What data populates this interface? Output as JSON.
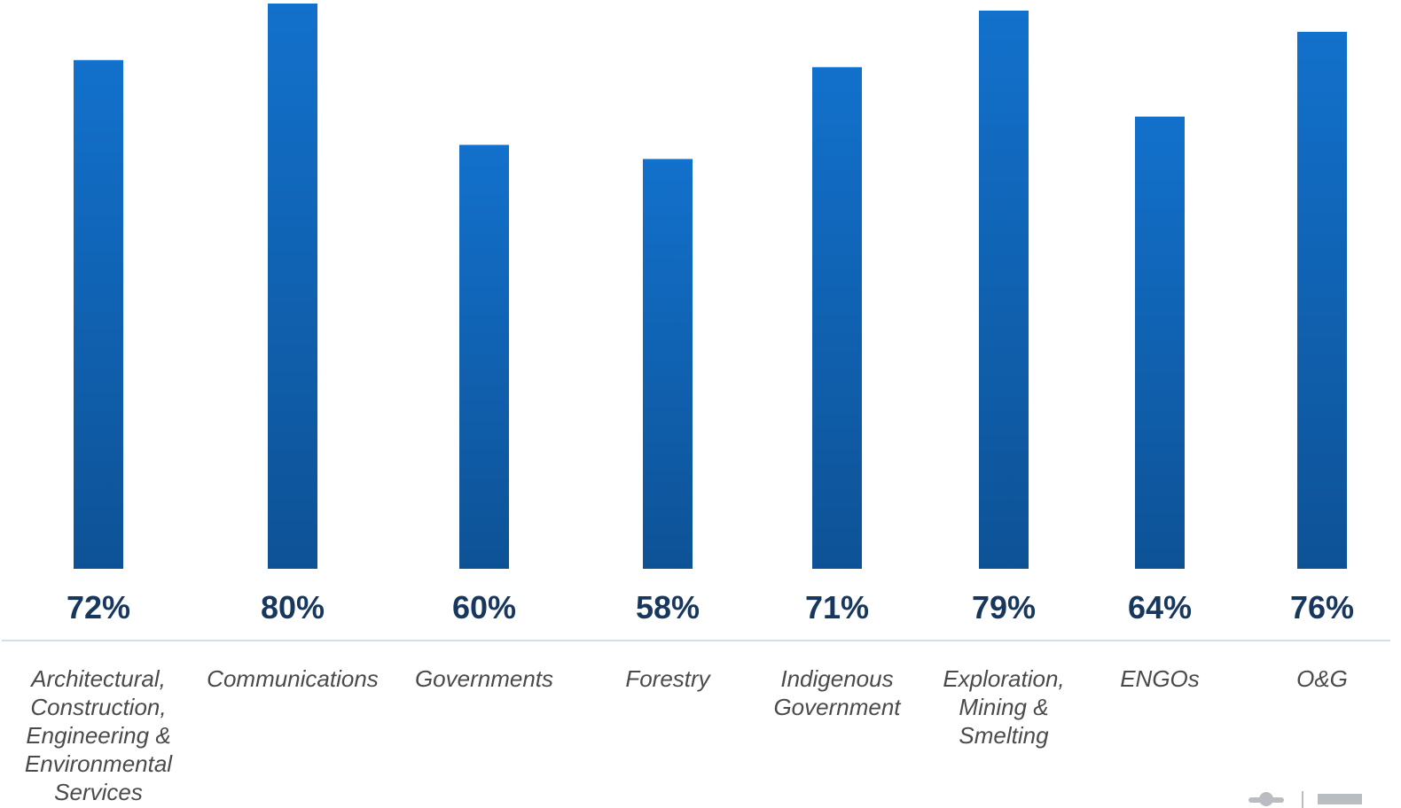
{
  "chart_data": {
    "type": "bar",
    "categories": [
      "Architectural, Construction, Engineering & Environmental Services",
      "Communications",
      "Governments",
      "Forestry",
      "Indigenous Government",
      "Exploration, Mining & Smelting",
      "ENGOs",
      "O&G"
    ],
    "category_lines": [
      [
        "Architectural,",
        "Construction,",
        "Engineering &",
        "Environmental",
        "Services"
      ],
      [
        "Communications"
      ],
      [
        "Governments"
      ],
      [
        "Forestry"
      ],
      [
        "Indigenous",
        "Government"
      ],
      [
        "Exploration,",
        "Mining &",
        "Smelting"
      ],
      [
        "ENGOs"
      ],
      [
        "O&G"
      ]
    ],
    "values": [
      72,
      80,
      60,
      58,
      71,
      79,
      64,
      76
    ],
    "value_labels": [
      "72%",
      "80%",
      "60%",
      "58%",
      "71%",
      "79%",
      "64%",
      "76%"
    ],
    "title": "",
    "xlabel": "",
    "ylabel": "",
    "ylim": [
      0,
      80
    ],
    "grid": false,
    "legend": "none",
    "colors": {
      "bar_top": "#1271cc",
      "bar_bottom": "#0e5296",
      "value_text": "#17375e",
      "category_text": "#4a4a4a",
      "axis_line": "#c5d3e4"
    }
  }
}
